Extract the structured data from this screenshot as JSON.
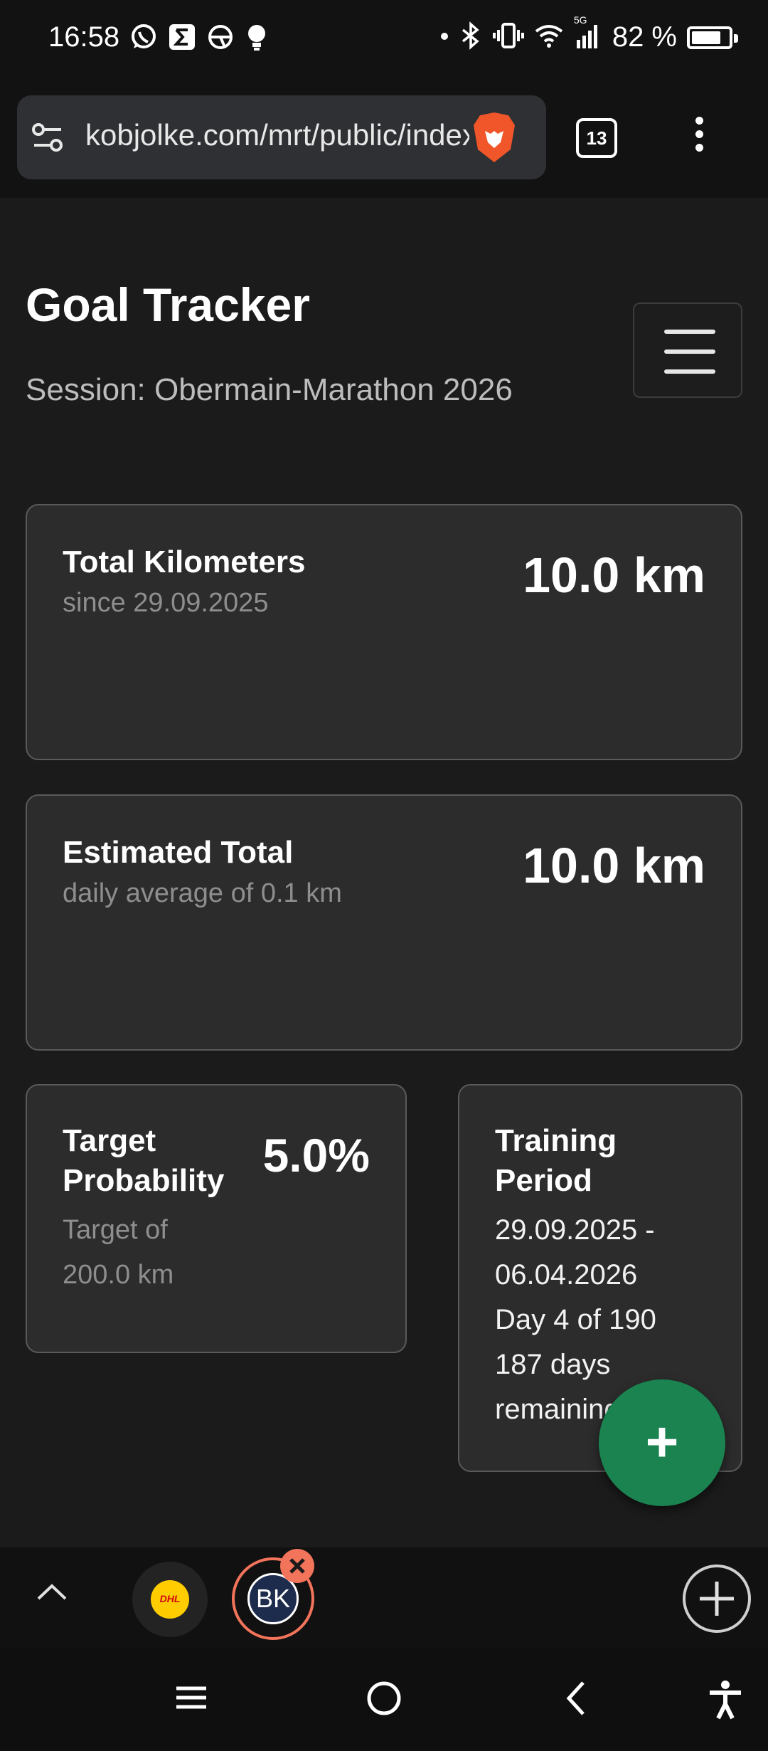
{
  "status_bar": {
    "time": "16:58",
    "notification_icons": [
      "whatsapp-icon",
      "sigma-app-icon",
      "steering-wheel-icon",
      "bulb-icon"
    ],
    "system_icons": [
      "dot-icon",
      "bluetooth-icon",
      "vibrate-icon",
      "wifi-icon",
      "signal-5g-icon"
    ],
    "network_label": "5G",
    "battery": "82 %",
    "battery_level": 0.82
  },
  "browser": {
    "url": "kobjolke.com/mrt/public/index",
    "tab_count": "13"
  },
  "page": {
    "title": "Goal Tracker",
    "session": "Session: Obermain-Marathon 2026"
  },
  "cards": {
    "total": {
      "title": "Total Kilometers",
      "subtitle": "since 29.09.2025",
      "value": "10.0 km"
    },
    "estimated": {
      "title": "Estimated Total",
      "subtitle": "daily average of 0.1 km",
      "value": "10.0 km"
    },
    "probability": {
      "title_line1": "Target",
      "title_line2": "Probability",
      "value": "5.0%",
      "subtitle_line1": "Target of",
      "subtitle_line2": "200.0 km"
    },
    "period": {
      "title_line1": "Training",
      "title_line2": "Period",
      "range_line1": "29.09.2025 -",
      "range_line2": "06.04.2026",
      "day": "Day 4 of 190",
      "remaining_line1": "187 days",
      "remaining_line2": "remaining"
    }
  },
  "fab": {
    "label": "+"
  },
  "tab_strip": {
    "dhl_label": "DHL",
    "bk_label": "BK"
  },
  "colors": {
    "accent_green": "#1a8350",
    "tab_highlight": "#f2745a",
    "card_bg": "#2c2c2c"
  }
}
